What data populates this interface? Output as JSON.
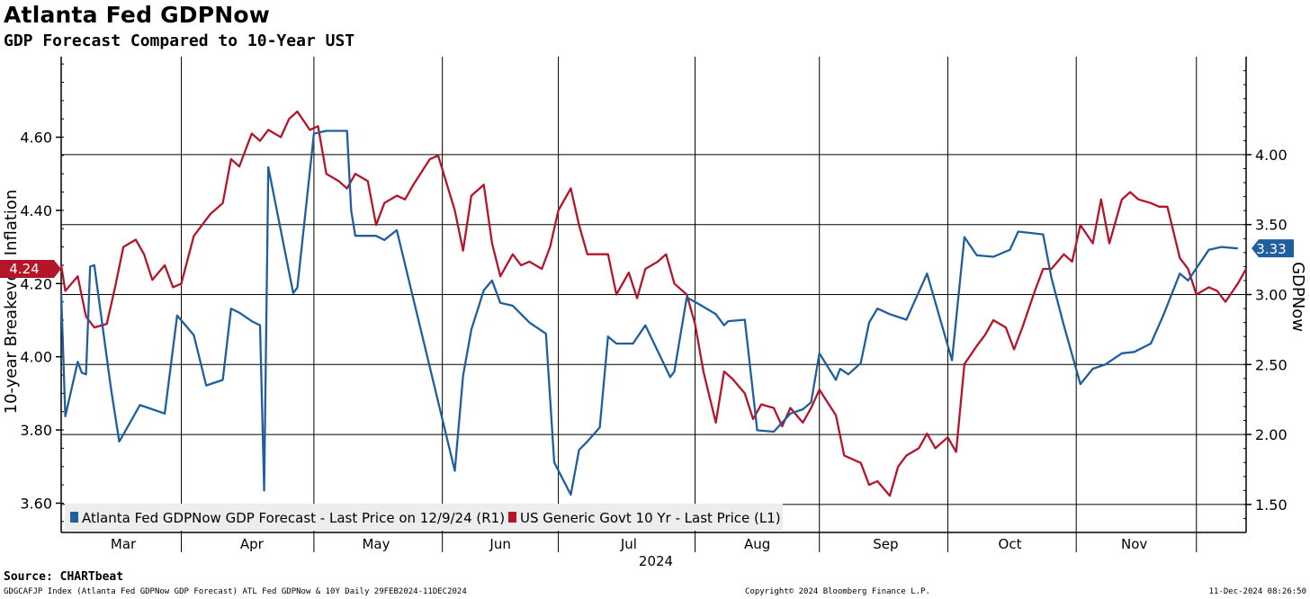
{
  "header": {
    "title": "Atlanta Fed GDPNow",
    "subtitle": "GDP Forecast Compared to 10-Year UST"
  },
  "footer": {
    "source": "Source: CHARTbeat",
    "index_info": "GDGCAFJP Index (Atlanta Fed GDPNow GDP Forecast) ATL Fed GDPNow & 10Y  Daily 29FEB2024-11DEC2024",
    "copyright": "Copyright© 2024 Bloomberg Finance L.P.",
    "timestamp": "11-Dec-2024 08:26:50"
  },
  "chart_data": {
    "type": "line",
    "title": "Atlanta Fed GDPNow",
    "subtitle": "GDP Forecast Compared to 10-Year UST",
    "xlabel": "2024",
    "ylabel_left": "10-year Breakeven Inflation",
    "ylabel_right": "GDPNow",
    "grid": true,
    "legend_position": "bottom-left",
    "x_categories": [
      "Mar",
      "Apr",
      "May",
      "Jun",
      "Jul",
      "Aug",
      "Sep",
      "Oct",
      "Nov"
    ],
    "x_range": [
      "2024-02-29",
      "2024-12-11"
    ],
    "y_left": {
      "ticks": [
        "3.60",
        "3.80",
        "4.00",
        "4.20",
        "4.40",
        "4.60"
      ],
      "range": [
        3.52,
        4.82
      ]
    },
    "y_right": {
      "ticks": [
        "1.50",
        "2.00",
        "2.50",
        "3.00",
        "3.50",
        "4.00"
      ],
      "range": [
        1.3,
        4.7
      ]
    },
    "colors": {
      "gdpnow": "#1f5f9e",
      "treasury": "#b5152b",
      "grid": "#000000"
    },
    "series": [
      {
        "name": "US Generic Govt 10 Yr - Last Price (L1)",
        "axis": "left",
        "last_value_label": "4.24",
        "points": [
          [
            "2024-02-29",
            4.25
          ],
          [
            "2024-03-01",
            4.18
          ],
          [
            "2024-03-04",
            4.22
          ],
          [
            "2024-03-06",
            4.11
          ],
          [
            "2024-03-08",
            4.08
          ],
          [
            "2024-03-11",
            4.09
          ],
          [
            "2024-03-13",
            4.19
          ],
          [
            "2024-03-15",
            4.3
          ],
          [
            "2024-03-18",
            4.32
          ],
          [
            "2024-03-20",
            4.28
          ],
          [
            "2024-03-22",
            4.21
          ],
          [
            "2024-03-25",
            4.25
          ],
          [
            "2024-03-27",
            4.19
          ],
          [
            "2024-03-29",
            4.2
          ],
          [
            "2024-04-01",
            4.33
          ],
          [
            "2024-04-03",
            4.36
          ],
          [
            "2024-04-05",
            4.39
          ],
          [
            "2024-04-08",
            4.42
          ],
          [
            "2024-04-10",
            4.54
          ],
          [
            "2024-04-12",
            4.52
          ],
          [
            "2024-04-15",
            4.61
          ],
          [
            "2024-04-17",
            4.59
          ],
          [
            "2024-04-19",
            4.62
          ],
          [
            "2024-04-22",
            4.6
          ],
          [
            "2024-04-24",
            4.65
          ],
          [
            "2024-04-26",
            4.67
          ],
          [
            "2024-04-29",
            4.62
          ],
          [
            "2024-05-01",
            4.63
          ],
          [
            "2024-05-03",
            4.5
          ],
          [
            "2024-05-06",
            4.48
          ],
          [
            "2024-05-08",
            4.46
          ],
          [
            "2024-05-10",
            4.5
          ],
          [
            "2024-05-13",
            4.48
          ],
          [
            "2024-05-15",
            4.36
          ],
          [
            "2024-05-17",
            4.42
          ],
          [
            "2024-05-20",
            4.44
          ],
          [
            "2024-05-22",
            4.43
          ],
          [
            "2024-05-24",
            4.47
          ],
          [
            "2024-05-28",
            4.54
          ],
          [
            "2024-05-30",
            4.55
          ],
          [
            "2024-06-03",
            4.4
          ],
          [
            "2024-06-05",
            4.29
          ],
          [
            "2024-06-07",
            4.44
          ],
          [
            "2024-06-10",
            4.47
          ],
          [
            "2024-06-12",
            4.31
          ],
          [
            "2024-06-14",
            4.22
          ],
          [
            "2024-06-17",
            4.28
          ],
          [
            "2024-06-19",
            4.25
          ],
          [
            "2024-06-21",
            4.26
          ],
          [
            "2024-06-24",
            4.24
          ],
          [
            "2024-06-26",
            4.3
          ],
          [
            "2024-06-28",
            4.4
          ],
          [
            "2024-07-01",
            4.46
          ],
          [
            "2024-07-03",
            4.36
          ],
          [
            "2024-07-05",
            4.28
          ],
          [
            "2024-07-08",
            4.28
          ],
          [
            "2024-07-10",
            4.28
          ],
          [
            "2024-07-12",
            4.17
          ],
          [
            "2024-07-15",
            4.23
          ],
          [
            "2024-07-17",
            4.16
          ],
          [
            "2024-07-19",
            4.24
          ],
          [
            "2024-07-22",
            4.26
          ],
          [
            "2024-07-24",
            4.28
          ],
          [
            "2024-07-26",
            4.2
          ],
          [
            "2024-07-29",
            4.17
          ],
          [
            "2024-07-31",
            4.09
          ],
          [
            "2024-08-02",
            3.96
          ],
          [
            "2024-08-05",
            3.82
          ],
          [
            "2024-08-07",
            3.96
          ],
          [
            "2024-08-09",
            3.94
          ],
          [
            "2024-08-12",
            3.9
          ],
          [
            "2024-08-14",
            3.83
          ],
          [
            "2024-08-16",
            3.87
          ],
          [
            "2024-08-19",
            3.86
          ],
          [
            "2024-08-21",
            3.81
          ],
          [
            "2024-08-23",
            3.86
          ],
          [
            "2024-08-26",
            3.82
          ],
          [
            "2024-08-28",
            3.86
          ],
          [
            "2024-08-30",
            3.91
          ],
          [
            "2024-09-03",
            3.84
          ],
          [
            "2024-09-05",
            3.73
          ],
          [
            "2024-09-09",
            3.71
          ],
          [
            "2024-09-11",
            3.65
          ],
          [
            "2024-09-13",
            3.66
          ],
          [
            "2024-09-16",
            3.62
          ],
          [
            "2024-09-18",
            3.7
          ],
          [
            "2024-09-20",
            3.73
          ],
          [
            "2024-09-23",
            3.75
          ],
          [
            "2024-09-25",
            3.79
          ],
          [
            "2024-09-27",
            3.75
          ],
          [
            "2024-09-30",
            3.78
          ],
          [
            "2024-10-02",
            3.74
          ],
          [
            "2024-10-04",
            3.98
          ],
          [
            "2024-10-07",
            4.03
          ],
          [
            "2024-10-09",
            4.06
          ],
          [
            "2024-10-11",
            4.1
          ],
          [
            "2024-10-14",
            4.08
          ],
          [
            "2024-10-16",
            4.02
          ],
          [
            "2024-10-18",
            4.08
          ],
          [
            "2024-10-21",
            4.18
          ],
          [
            "2024-10-23",
            4.24
          ],
          [
            "2024-10-25",
            4.24
          ],
          [
            "2024-10-28",
            4.28
          ],
          [
            "2024-10-30",
            4.26
          ],
          [
            "2024-11-01",
            4.36
          ],
          [
            "2024-11-04",
            4.31
          ],
          [
            "2024-11-06",
            4.43
          ],
          [
            "2024-11-08",
            4.31
          ],
          [
            "2024-11-11",
            4.43
          ],
          [
            "2024-11-13",
            4.45
          ],
          [
            "2024-11-15",
            4.43
          ],
          [
            "2024-11-18",
            4.42
          ],
          [
            "2024-11-20",
            4.41
          ],
          [
            "2024-11-22",
            4.41
          ],
          [
            "2024-11-25",
            4.27
          ],
          [
            "2024-11-27",
            4.24
          ],
          [
            "2024-11-29",
            4.17
          ],
          [
            "2024-12-02",
            4.19
          ],
          [
            "2024-12-04",
            4.18
          ],
          [
            "2024-12-06",
            4.15
          ],
          [
            "2024-12-09",
            4.2
          ],
          [
            "2024-12-11",
            4.24
          ]
        ]
      },
      {
        "name": "Atlanta Fed GDPNow GDP Forecast - Last Price on 12/9/24 (R1)",
        "axis": "right",
        "last_value_label": "3.33",
        "points": [
          [
            "2024-02-29",
            3.01
          ],
          [
            "2024-03-01",
            2.13
          ],
          [
            "2024-03-04",
            2.52
          ],
          [
            "2024-03-05",
            2.44
          ],
          [
            "2024-03-06",
            2.43
          ],
          [
            "2024-03-07",
            3.2
          ],
          [
            "2024-03-08",
            3.21
          ],
          [
            "2024-03-12",
            2.33
          ],
          [
            "2024-03-14",
            1.95
          ],
          [
            "2024-03-15",
            2.0
          ],
          [
            "2024-03-19",
            2.21
          ],
          [
            "2024-03-21",
            2.19
          ],
          [
            "2024-03-25",
            2.15
          ],
          [
            "2024-03-28",
            2.85
          ],
          [
            "2024-04-01",
            2.71
          ],
          [
            "2024-04-04",
            2.35
          ],
          [
            "2024-04-08",
            2.39
          ],
          [
            "2024-04-10",
            2.9
          ],
          [
            "2024-04-12",
            2.87
          ],
          [
            "2024-04-15",
            2.81
          ],
          [
            "2024-04-17",
            2.78
          ],
          [
            "2024-04-18",
            1.6
          ],
          [
            "2024-04-19",
            3.91
          ],
          [
            "2024-04-25",
            3.01
          ],
          [
            "2024-04-26",
            3.05
          ],
          [
            "2024-04-30",
            4.15
          ],
          [
            "2024-05-03",
            4.17
          ],
          [
            "2024-05-08",
            4.17
          ],
          [
            "2024-05-09",
            3.6
          ],
          [
            "2024-05-10",
            3.42
          ],
          [
            "2024-05-15",
            3.42
          ],
          [
            "2024-05-17",
            3.39
          ],
          [
            "2024-05-20",
            3.46
          ],
          [
            "2024-06-03",
            1.74
          ],
          [
            "2024-06-05",
            2.42
          ],
          [
            "2024-06-07",
            2.75
          ],
          [
            "2024-06-10",
            3.03
          ],
          [
            "2024-06-12",
            3.1
          ],
          [
            "2024-06-14",
            2.94
          ],
          [
            "2024-06-17",
            2.92
          ],
          [
            "2024-06-21",
            2.8
          ],
          [
            "2024-06-25",
            2.72
          ],
          [
            "2024-06-27",
            1.8
          ],
          [
            "2024-07-01",
            1.57
          ],
          [
            "2024-07-03",
            1.89
          ],
          [
            "2024-07-05",
            1.95
          ],
          [
            "2024-07-08",
            2.05
          ],
          [
            "2024-07-10",
            2.7
          ],
          [
            "2024-07-12",
            2.65
          ],
          [
            "2024-07-16",
            2.65
          ],
          [
            "2024-07-19",
            2.78
          ],
          [
            "2024-07-25",
            2.41
          ],
          [
            "2024-07-26",
            2.45
          ],
          [
            "2024-07-29",
            2.98
          ],
          [
            "2024-08-01",
            2.93
          ],
          [
            "2024-08-05",
            2.86
          ],
          [
            "2024-08-07",
            2.78
          ],
          [
            "2024-08-08",
            2.81
          ],
          [
            "2024-08-12",
            2.82
          ],
          [
            "2024-08-15",
            2.03
          ],
          [
            "2024-08-19",
            2.02
          ],
          [
            "2024-08-23",
            2.15
          ],
          [
            "2024-08-26",
            2.18
          ],
          [
            "2024-08-28",
            2.23
          ],
          [
            "2024-08-30",
            2.58
          ],
          [
            "2024-09-03",
            2.39
          ],
          [
            "2024-09-04",
            2.47
          ],
          [
            "2024-09-06",
            2.43
          ],
          [
            "2024-09-09",
            2.51
          ],
          [
            "2024-09-11",
            2.8
          ],
          [
            "2024-09-13",
            2.9
          ],
          [
            "2024-09-16",
            2.86
          ],
          [
            "2024-09-20",
            2.82
          ],
          [
            "2024-09-25",
            3.15
          ],
          [
            "2024-10-01",
            2.53
          ],
          [
            "2024-10-04",
            3.41
          ],
          [
            "2024-10-07",
            3.28
          ],
          [
            "2024-10-11",
            3.27
          ],
          [
            "2024-10-15",
            3.32
          ],
          [
            "2024-10-17",
            3.45
          ],
          [
            "2024-10-23",
            3.43
          ],
          [
            "2024-10-25",
            3.12
          ],
          [
            "2024-10-28",
            2.78
          ],
          [
            "2024-11-01",
            2.36
          ],
          [
            "2024-11-04",
            2.47
          ],
          [
            "2024-11-07",
            2.5
          ],
          [
            "2024-11-11",
            2.58
          ],
          [
            "2024-11-14",
            2.59
          ],
          [
            "2024-11-18",
            2.65
          ],
          [
            "2024-11-21",
            2.85
          ],
          [
            "2024-11-25",
            3.15
          ],
          [
            "2024-11-27",
            3.1
          ],
          [
            "2024-12-02",
            3.32
          ],
          [
            "2024-12-05",
            3.34
          ],
          [
            "2024-12-09",
            3.33
          ]
        ]
      }
    ]
  }
}
